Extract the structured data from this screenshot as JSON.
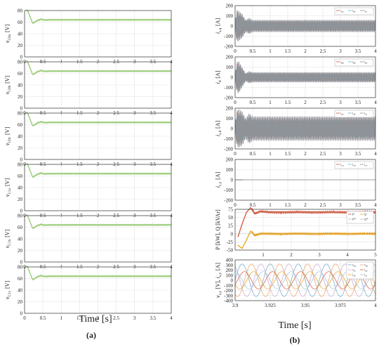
{
  "figure": {
    "left_caption": "(a)",
    "right_caption": "(b)",
    "left_xlabel": "Time [s]",
    "right_xlabel": "Time [s]"
  },
  "colors": {
    "dc_voltage": "#9ccc7a",
    "series_red": "#d2553a",
    "series_blue": "#6fa9c9",
    "series_gray": "#8f8f8f",
    "series_orange": "#e9a21c",
    "grid": "#e3e3e3",
    "axis": "#333333"
  },
  "chart_data": [
    {
      "type": "line",
      "panel": "a1",
      "ylabel": "v_C0a [V]",
      "ylim": [
        0,
        80
      ],
      "yticks": [
        0,
        20,
        40,
        60,
        80
      ],
      "xlim": [
        0,
        4
      ],
      "xticks": [
        "0",
        "0.5",
        "1",
        "1.5",
        "2",
        "2.5",
        "3",
        "3.5",
        "4"
      ],
      "series": [
        {
          "x": [
            0.05,
            0.08,
            0.12,
            0.17,
            0.22,
            0.28,
            0.35,
            0.45,
            0.55,
            0.7,
            1.0,
            2.0,
            4.0
          ],
          "values": [
            82,
            80,
            74,
            66,
            58,
            60,
            63,
            65,
            63.5,
            64,
            64,
            64,
            64
          ]
        }
      ]
    },
    {
      "type": "line",
      "panel": "a2",
      "ylabel": "v_C0b [V]",
      "ylim": [
        0,
        80
      ],
      "yticks": [
        0,
        20,
        40,
        60,
        80
      ],
      "xlim": [
        0,
        4
      ],
      "xticks": [
        "0",
        "0.5",
        "1",
        "1.5",
        "2",
        "2.5",
        "3",
        "3.5",
        "4"
      ],
      "series": [
        {
          "x": [
            0.05,
            0.08,
            0.12,
            0.17,
            0.22,
            0.28,
            0.35,
            0.45,
            0.55,
            0.7,
            1.0,
            2.0,
            4.0
          ],
          "values": [
            82,
            80,
            74,
            66,
            58,
            60,
            63,
            65,
            63.5,
            64,
            64,
            64,
            64
          ]
        }
      ]
    },
    {
      "type": "line",
      "panel": "a3",
      "ylabel": "v_C0c [V]",
      "ylim": [
        0,
        80
      ],
      "yticks": [
        0,
        20,
        40,
        60,
        80
      ],
      "xlim": [
        0,
        4
      ],
      "xticks": [
        "0",
        "0.5",
        "1",
        "1.5",
        "2",
        "2.5",
        "3",
        "3.5",
        "4"
      ],
      "series": [
        {
          "x": [
            0.05,
            0.08,
            0.12,
            0.17,
            0.22,
            0.28,
            0.35,
            0.45,
            0.55,
            0.7,
            1.0,
            2.0,
            4.0
          ],
          "values": [
            82,
            80,
            74,
            66,
            58,
            60,
            63,
            65,
            63.5,
            64,
            64,
            64,
            64
          ]
        }
      ]
    },
    {
      "type": "line",
      "panel": "a4",
      "ylabel": "v_C1a [V]",
      "ylim": [
        0,
        80
      ],
      "yticks": [
        0,
        20,
        40,
        60,
        80
      ],
      "xlim": [
        0,
        4
      ],
      "xticks": [
        "0",
        "0.5",
        "1",
        "1.5",
        "2",
        "2.5",
        "3",
        "3.5",
        "4"
      ],
      "series": [
        {
          "x": [
            0.05,
            0.08,
            0.12,
            0.17,
            0.22,
            0.28,
            0.35,
            0.45,
            0.55,
            0.7,
            1.0,
            2.0,
            4.0
          ],
          "values": [
            82,
            80,
            74,
            66,
            58,
            60,
            63,
            65,
            63.5,
            64,
            64,
            64,
            64
          ]
        }
      ]
    },
    {
      "type": "line",
      "panel": "a5",
      "ylabel": "v_C1b [V]",
      "ylim": [
        0,
        80
      ],
      "yticks": [
        0,
        20,
        40,
        60,
        80
      ],
      "xlim": [
        0,
        4
      ],
      "xticks": [
        "0",
        "0.5",
        "1",
        "1.5",
        "2",
        "2.5",
        "3",
        "3.5",
        "4"
      ],
      "series": [
        {
          "x": [
            0.05,
            0.08,
            0.12,
            0.17,
            0.22,
            0.28,
            0.35,
            0.45,
            0.55,
            0.7,
            1.0,
            2.0,
            4.0
          ],
          "values": [
            82,
            80,
            74,
            66,
            58,
            60,
            63,
            65,
            63.5,
            64,
            64,
            64,
            64
          ]
        }
      ]
    },
    {
      "type": "line",
      "panel": "a6",
      "ylabel": "v_C1c [V]",
      "ylim": [
        0,
        80
      ],
      "yticks": [
        0,
        20,
        40,
        60,
        80
      ],
      "xlim": [
        0,
        4
      ],
      "xticks": [
        "0",
        "0.5",
        "1",
        "1.5",
        "2",
        "2.5",
        "3",
        "3.5",
        "4"
      ],
      "series": [
        {
          "x": [
            0.05,
            0.08,
            0.12,
            0.17,
            0.22,
            0.28,
            0.35,
            0.45,
            0.55,
            0.7,
            1.0,
            2.0,
            4.0
          ],
          "values": [
            82,
            80,
            74,
            66,
            58,
            60,
            63,
            65,
            63.5,
            64,
            64,
            64,
            64
          ]
        }
      ]
    },
    {
      "type": "area",
      "panel": "b1",
      "ylabel": "i_s,q [A]",
      "ylim": [
        -200,
        200
      ],
      "yticks": [
        -200,
        -100,
        0,
        100,
        200
      ],
      "xlim": [
        0,
        4
      ],
      "xticks": [
        "0",
        "0.5",
        "1",
        "1.5",
        "2",
        "2.5",
        "3",
        "3.5",
        "4"
      ],
      "legend": [
        "i_sa",
        "i_sb",
        "i_sc"
      ],
      "legend_position": "top-right",
      "envelope": {
        "x": [
          0,
          0.05,
          0.1,
          0.2,
          0.3,
          0.4,
          0.5,
          4.0
        ],
        "amplitude": [
          40,
          160,
          150,
          120,
          60,
          80,
          60,
          60
        ]
      }
    },
    {
      "type": "area",
      "panel": "b2",
      "ylabel": "i_d [A]",
      "ylim": [
        -200,
        200
      ],
      "yticks": [
        -200,
        -100,
        0,
        100,
        200
      ],
      "xlim": [
        0,
        4
      ],
      "xticks": [
        "0",
        "0.5",
        "1",
        "1.5",
        "2",
        "2.5",
        "3",
        "3.5",
        "4"
      ],
      "legend": [
        "i_da",
        "i_db",
        "i_dc"
      ],
      "legend_position": "top-right",
      "envelope": {
        "x": [
          0,
          0.05,
          0.1,
          0.2,
          0.3,
          0.4,
          0.5,
          4.0
        ],
        "amplitude": [
          30,
          150,
          160,
          100,
          40,
          60,
          50,
          50
        ]
      }
    },
    {
      "type": "area",
      "panel": "b3",
      "ylabel": "i_s,d [A]",
      "ylim": [
        -200,
        200
      ],
      "yticks": [
        -200,
        -100,
        0,
        100,
        200
      ],
      "xlim": [
        0,
        4
      ],
      "xticks": [
        "0",
        "0.5",
        "1",
        "1.5",
        "2",
        "2.5",
        "3",
        "3.5",
        "4"
      ],
      "legend": [
        "i_sa",
        "i_sb",
        "i_sc"
      ],
      "legend_position": "top-right",
      "envelope": {
        "x": [
          0,
          0.05,
          0.1,
          0.2,
          0.3,
          0.4,
          0.5,
          4.0
        ],
        "amplitude": [
          40,
          180,
          190,
          170,
          100,
          150,
          120,
          120
        ]
      }
    },
    {
      "type": "line",
      "panel": "b4",
      "ylabel": "i_c,y [A]",
      "ylim": [
        -200,
        200
      ],
      "yticks": [
        -200,
        -100,
        0,
        100,
        200
      ],
      "xlim": [
        0,
        4
      ],
      "xticks": [
        "0",
        "0.5",
        "1",
        "1.5",
        "2",
        "2.5",
        "3",
        "3.5",
        "4"
      ],
      "legend": [
        "i_ca",
        "i_cb",
        "i_cc"
      ],
      "legend_position": "top-right",
      "series": [
        {
          "name": "i_ca",
          "x": [
            0,
            4
          ],
          "values": [
            0,
            0
          ]
        }
      ]
    },
    {
      "type": "line",
      "panel": "b5",
      "ylabel": "P [kW], Q [kVAr]",
      "ylim": [
        -50,
        75
      ],
      "yticks": [
        -50,
        -25,
        0,
        25,
        50,
        75
      ],
      "xlim": [
        0,
        5
      ],
      "xticks": [
        "1",
        "2",
        "3",
        "4",
        "5"
      ],
      "legend": [
        "P",
        "Q",
        "P*",
        "Q*"
      ],
      "legend_position": "top-right",
      "series": [
        {
          "name": "P",
          "x": [
            0.1,
            0.25,
            0.4,
            0.55,
            0.7,
            0.9,
            1.2,
            3.7,
            3.7,
            5.0
          ],
          "values": [
            -10,
            30,
            65,
            80,
            62,
            68,
            66,
            66,
            66,
            66
          ]
        },
        {
          "name": "Q",
          "x": [
            0.1,
            0.25,
            0.4,
            0.55,
            0.7,
            0.9,
            1.2,
            5.0
          ],
          "values": [
            -35,
            -45,
            -20,
            8,
            -5,
            0,
            0,
            0
          ]
        },
        {
          "name": "P*",
          "x": [
            0,
            5
          ],
          "values": [
            66,
            66
          ]
        },
        {
          "name": "Q*",
          "x": [
            0,
            5
          ],
          "values": [
            0,
            0
          ]
        }
      ]
    },
    {
      "type": "line",
      "panel": "b6",
      "ylabel": "v_s,y [V], i_s,y [A]",
      "ylim": [
        -400,
        400
      ],
      "yticks": [
        -400,
        -300,
        -200,
        -100,
        0,
        100,
        200,
        300,
        400
      ],
      "xlim": [
        3.9,
        4.0
      ],
      "xticks": [
        "3.9",
        "3.925",
        "3.95",
        "3.975",
        "4"
      ],
      "legend": [
        "v_sa",
        "v_sb",
        "v_sc",
        "i_sa",
        "i_sb",
        "i_sc"
      ],
      "legend_position": "top-right",
      "series": [
        {
          "name": "v_sa",
          "type": "sine",
          "amplitude": 320,
          "frequency": 50,
          "phase": 0
        },
        {
          "name": "v_sb",
          "type": "sine",
          "amplitude": 320,
          "frequency": 50,
          "phase": -120
        },
        {
          "name": "v_sc",
          "type": "sine",
          "amplitude": 320,
          "frequency": 50,
          "phase": 120
        },
        {
          "name": "i_sa",
          "type": "sine",
          "amplitude": 170,
          "frequency": 50,
          "phase": -30
        },
        {
          "name": "i_sb",
          "type": "sine",
          "amplitude": 170,
          "frequency": 50,
          "phase": -150
        },
        {
          "name": "i_sc",
          "type": "sine",
          "amplitude": 170,
          "frequency": 50,
          "phase": 90
        }
      ]
    }
  ]
}
